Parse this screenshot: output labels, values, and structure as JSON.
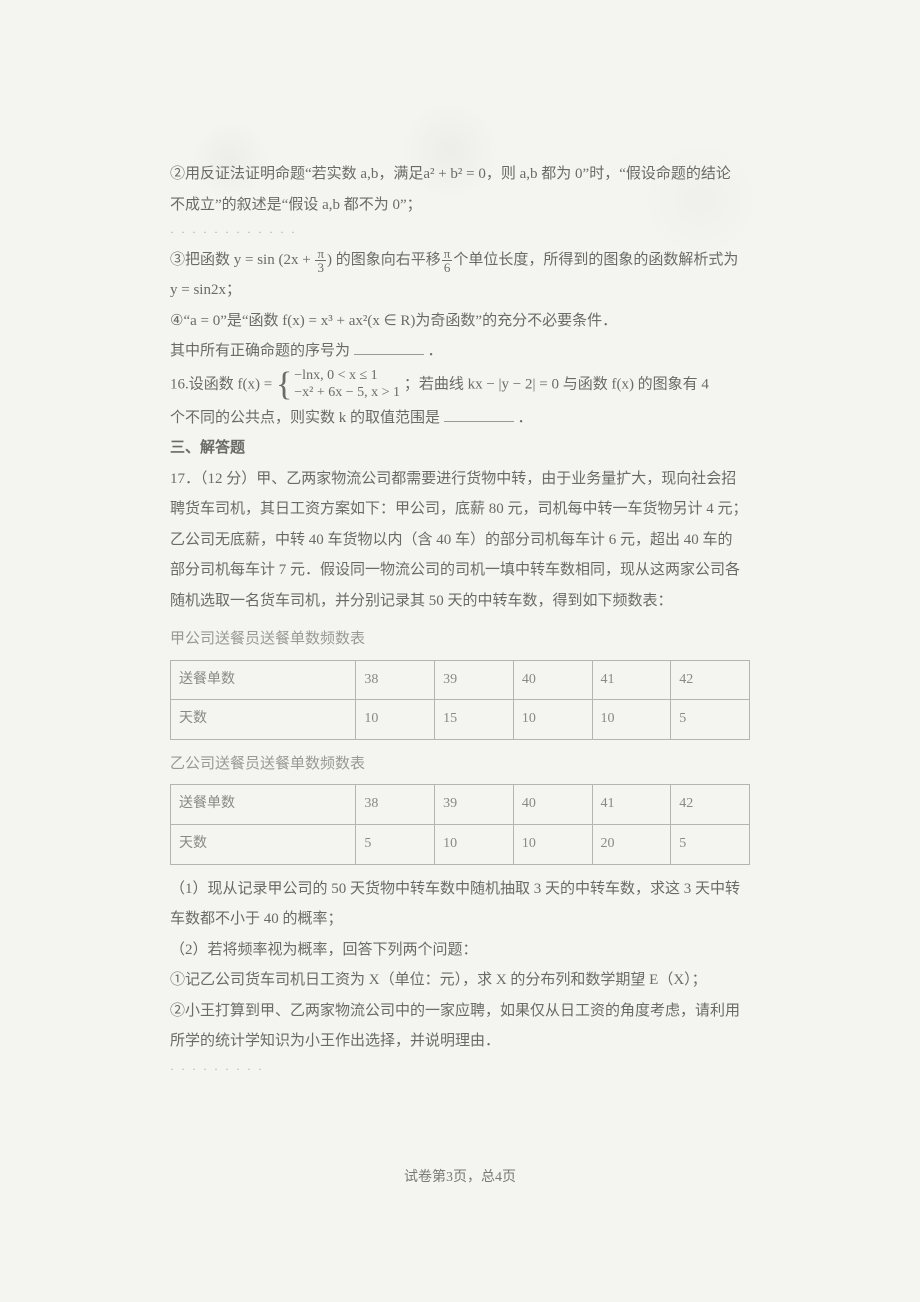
{
  "item2": {
    "l1": "②用反证法证明命题“若实数 a,b，满足a² + b² = 0，则 a,b 都为 0”时，“假设命题的结论",
    "l2": "不成立”的叙述是“假设 a,b 都不为 0”；"
  },
  "item3": {
    "prefix": "③把函数 y = sin",
    "arg_open": "(",
    "two_x": "2x + ",
    "frac_n": "π",
    "frac_d": "3",
    "arg_close": ")",
    "mid": "的图象向右平移",
    "frac2_n": "π",
    "frac2_d": "6",
    "tail": "个单位长度，所得到的图象的函数解析式为",
    "l2": "y = sin2x；"
  },
  "item4": "④“a = 0”是“函数 f(x) = x³ + ax²(x ∈ R)为奇函数”的充分不必要条件．",
  "item_tail": {
    "a": "其中所有正确命题的序号为",
    "b": "．"
  },
  "q16": {
    "prefix": "16.设函数 f(x) = ",
    "case1": "−lnx, 0 < x ≤ 1",
    "case2": "−x² + 6x − 5, x > 1",
    "mid": "；若曲线 kx − |y − 2| = 0 与函数 f(x) 的图象有 4",
    "l2a": "个不同的公共点，则实数 k 的取值范围是",
    "l2b": "．"
  },
  "sec3": "三、解答题",
  "q17": {
    "l1": "17．（12 分）甲、乙两家物流公司都需要进行货物中转，由于业务量扩大，现向社会招",
    "l2": "聘货车司机，其日工资方案如下：甲公司，底薪 80 元，司机每中转一车货物另计 4 元；",
    "l3": "乙公司无底薪，中转 40 车货物以内（含 40 车）的部分司机每车计 6 元，超出 40 车的",
    "l4": "部分司机每车计 7 元．假设同一物流公司的司机一填中转车数相同，现从这两家公司各",
    "l5": "随机选取一名货车司机，并分别记录其 50 天的中转车数，得到如下频数表："
  },
  "tableA": {
    "caption": "甲公司送餐员送餐单数频数表",
    "r1": [
      "送餐单数",
      "38",
      "39",
      "40",
      "41",
      "42"
    ],
    "r2": [
      "天数",
      "10",
      "15",
      "10",
      "10",
      "5"
    ]
  },
  "tableB": {
    "caption": "乙公司送餐员送餐单数频数表",
    "r1": [
      "送餐单数",
      "38",
      "39",
      "40",
      "41",
      "42"
    ],
    "r2": [
      "天数",
      "5",
      "10",
      "10",
      "20",
      "5"
    ]
  },
  "sub": {
    "s1": "（1）现从记录甲公司的 50 天货物中转车数中随机抽取 3 天的中转车数，求这 3 天中转",
    "s1b": "车数都不小于 40 的概率；",
    "s2": "（2）若将频率视为概率，回答下列两个问题：",
    "s2a": "①记乙公司货车司机日工资为 X（单位：元），求 X 的分布列和数学期望 E（X）；",
    "s2b": "②小王打算到甲、乙两家物流公司中的一家应聘，如果仅从日工资的角度考虑，请利用",
    "s2c": "所学的统计学知识为小王作出选择，并说明理由．"
  },
  "footer": "试卷第3页，总4页",
  "noise": {
    "a": "· · · ·  ·     ·   ·  ·       ·   ·  ·  ·",
    "b": "·  ·   ·    ·        ·   · ·  ·  ·"
  }
}
